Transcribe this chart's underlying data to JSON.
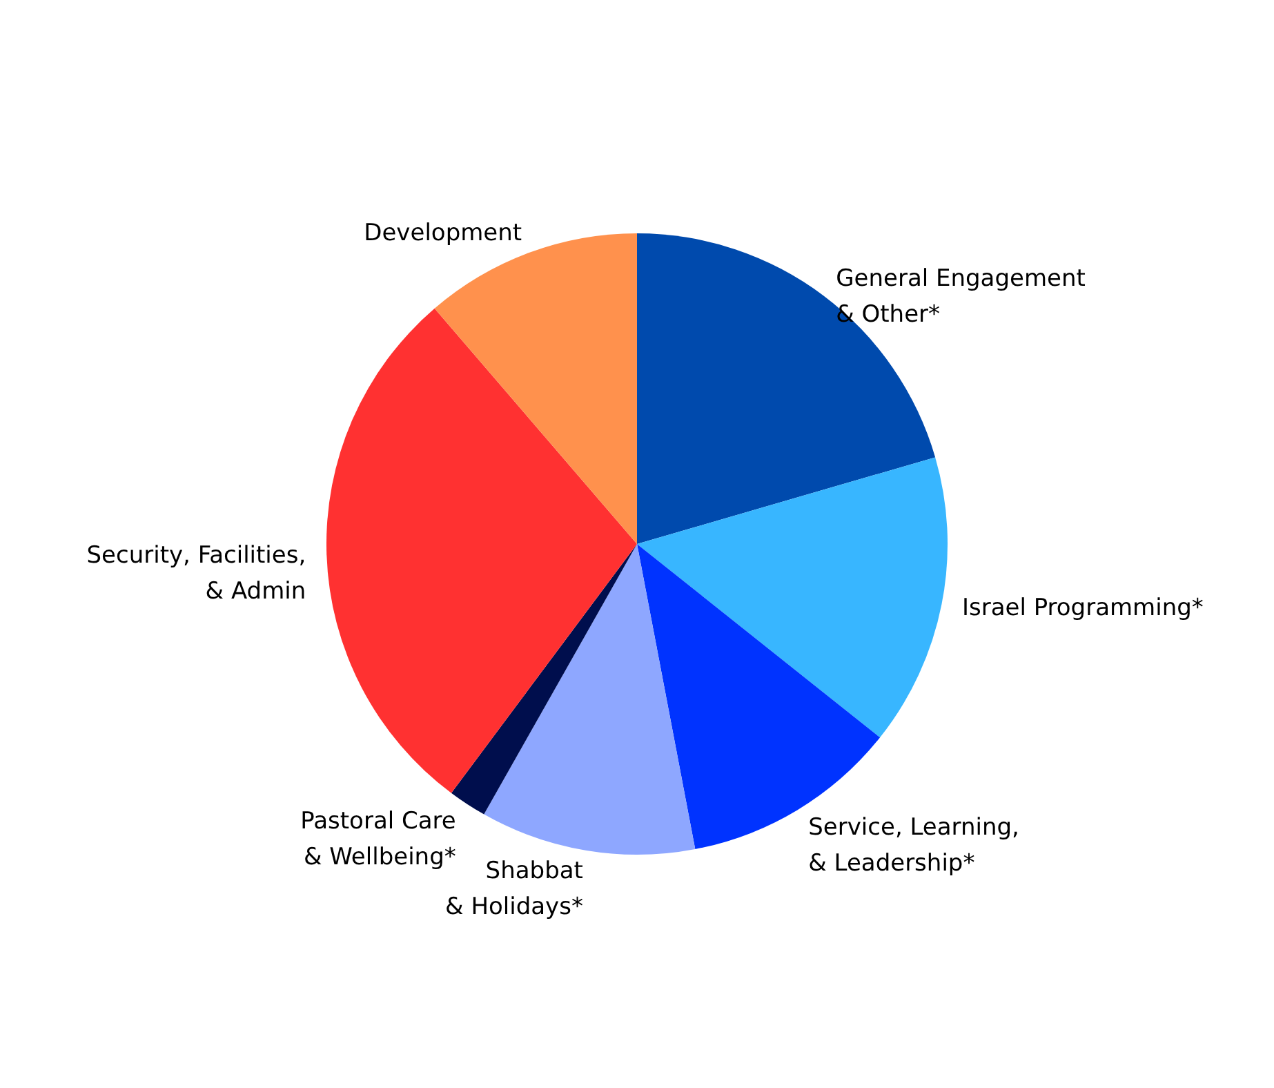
{
  "chart_data": {
    "type": "pie",
    "categories": [
      "General Engagement & Other*",
      "Israel Programming*",
      "Service, Learning, & Leadership*",
      "Shabbat & Holidays*",
      "Pastoral Care & Wellbeing*",
      "Security, Facilities, & Admin",
      "Development"
    ],
    "values": [
      20.5,
      15.2,
      11.3,
      11.2,
      2,
      28.5,
      11.3
    ],
    "colors": [
      "#004aad",
      "#38b6ff",
      "#0033ff",
      "#8ea7ff",
      "#000e4d",
      "#ff3131",
      "#ff914d"
    ]
  }
}
